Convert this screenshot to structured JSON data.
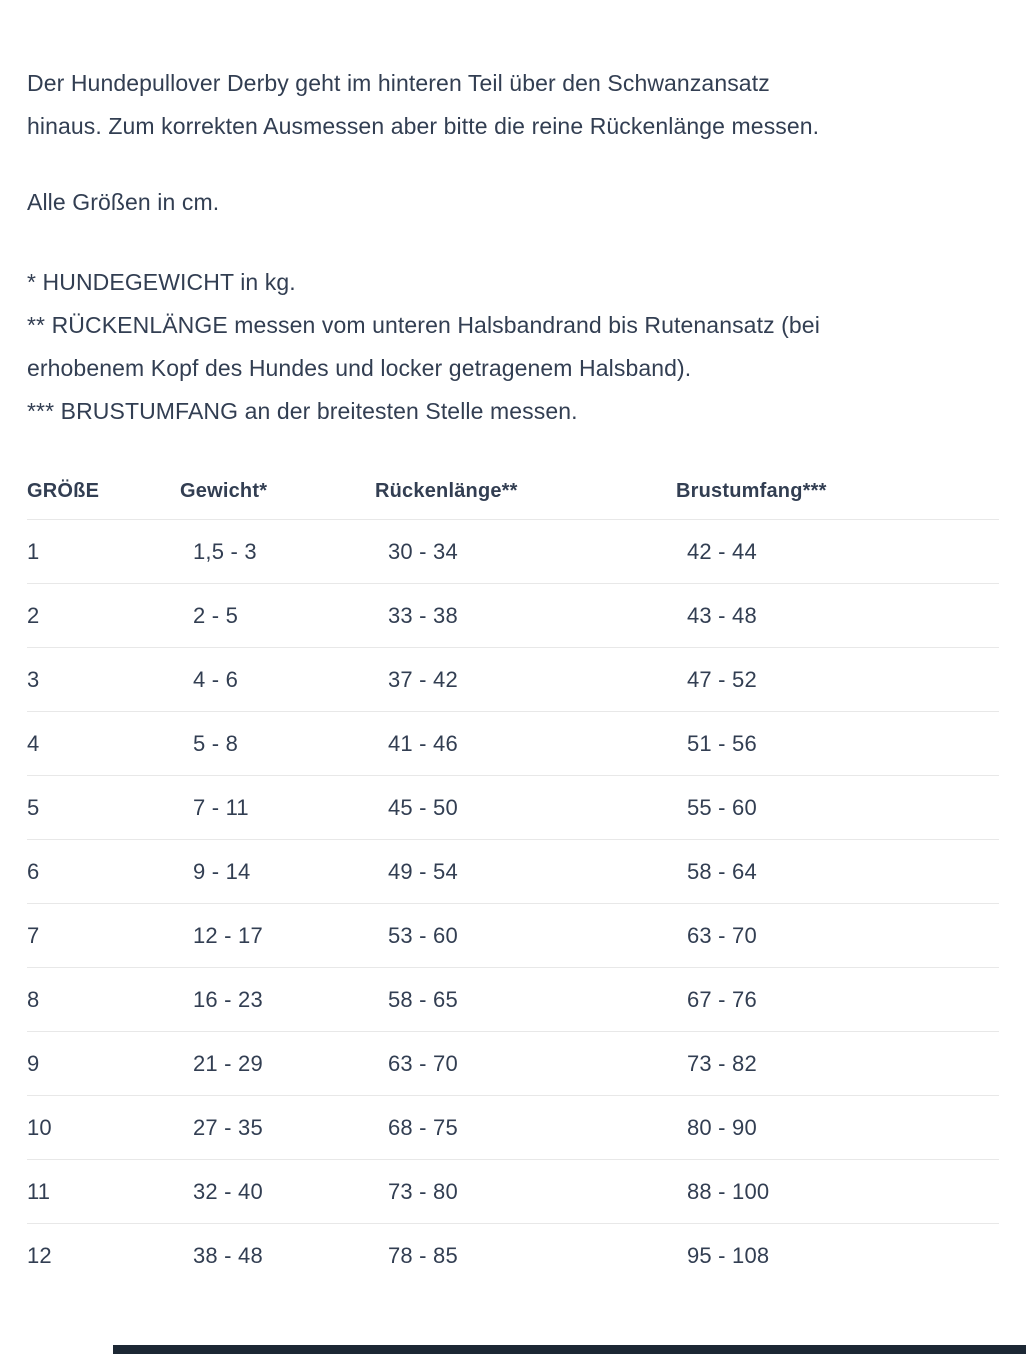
{
  "page": {
    "background_color": "#ffffff",
    "text_color": "#323e52",
    "divider_color": "#e8e8e8",
    "intro": "Der Hundepullover Derby geht im hinteren Teil über den Schwanzansatz\nhinaus. Zum korrekten Ausmessen aber bitte die reine Rückenlänge messen.",
    "units_note": "Alle Größen in cm.",
    "footnotes": [
      "* HUNDEGEWICHT in kg.",
      "** RÜCKENLÄNGE messen vom unteren Halsbandrand bis Rutenansatz (bei\nerhobenem Kopf des Hundes und locker getragenem Halsband).",
      "*** BRUSTUMFANG an der breitesten Stelle messen."
    ]
  },
  "size_table": {
    "columns": [
      "GRÖßE",
      "Gewicht*",
      "Rückenlänge**",
      "Brustumfang***"
    ],
    "rows": [
      [
        "1",
        "1,5 - 3",
        "30 - 34",
        "42 - 44"
      ],
      [
        "2",
        "2 - 5",
        "33 - 38",
        "43 - 48"
      ],
      [
        "3",
        "4 - 6",
        "37 - 42",
        "47 - 52"
      ],
      [
        "4",
        "5 - 8",
        "41 - 46",
        "51 - 56"
      ],
      [
        "5",
        "7 - 11",
        "45 - 50",
        "55 - 60"
      ],
      [
        "6",
        "9 - 14",
        "49 - 54",
        "58 - 64"
      ],
      [
        "7",
        "12 - 17",
        "53 - 60",
        "63 - 70"
      ],
      [
        "8",
        "16 - 23",
        "58 - 65",
        "67 - 76"
      ],
      [
        "9",
        "21 - 29",
        "63 - 70",
        "73 - 82"
      ],
      [
        "10",
        "27 - 35",
        "68 - 75",
        "80 - 90"
      ],
      [
        "11",
        "32 - 40",
        "73 - 80",
        "88 - 100"
      ],
      [
        "12",
        "38 - 48",
        "78 - 85",
        "95 - 108"
      ]
    ]
  },
  "next_section": {
    "sliver_color": "#1c2734"
  }
}
